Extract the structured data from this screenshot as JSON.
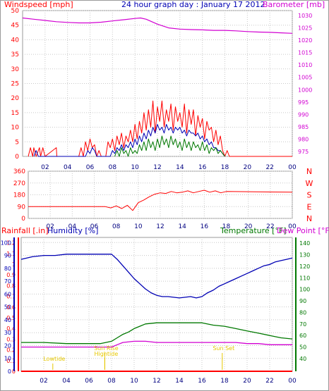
{
  "header": {
    "left_title": "Windspeed [mph]",
    "center_title": "24 hour graph day : January 17 2012",
    "right_title": "Barometer [mb]"
  },
  "colors": {
    "red": "#ff0000",
    "blue": "#0000b4",
    "green": "#007800",
    "magenta": "#d200d2",
    "yellow": "#e6c800",
    "grid": "#c8c8c8",
    "axis_frame": "#999999"
  },
  "legends": {
    "rainfall": "Rainfall [.in]",
    "humidity": "Humidity [%]",
    "temperature": "Temperature [°F]",
    "dewpoint": "Dew Point [°F]"
  },
  "annotations": {
    "lowtide": "Lowtide",
    "hightide": "Hightide",
    "sunrise": "Sun Rise",
    "sunset": "Sun Set"
  },
  "chart_data": [
    {
      "type": "line",
      "name": "wind",
      "title": "24 hour graph day : January 17 2012",
      "x_ticks": [
        "02",
        "04",
        "06",
        "08",
        "10",
        "12",
        "14",
        "16",
        "18",
        "20",
        "22",
        "00"
      ],
      "y_left_label": "Windspeed [mph]",
      "y_left_ticks": [
        0,
        5,
        10,
        15,
        20,
        25,
        30,
        35,
        40,
        45,
        50
      ],
      "ylim_left": [
        0,
        50
      ],
      "y_right_label": "Barometer [mb]",
      "y_right_ticks": [
        975,
        980,
        985,
        990,
        995,
        1000,
        1005,
        1010,
        1015,
        1020,
        1025,
        1030
      ],
      "ylim_right": [
        973,
        1032
      ],
      "grid": true,
      "series": [
        {
          "name": "Gust",
          "axis": "left",
          "color": "#ff0000",
          "x": [
            0.5,
            0.7,
            0.9,
            1.0,
            1.2,
            1.5,
            1.6,
            1.8,
            2.0,
            3.0,
            3.05,
            3.1,
            5.0,
            5.2,
            5.4,
            5.6,
            5.8,
            6.0,
            6.2,
            6.4,
            6.6,
            6.8,
            7.0,
            7.4,
            7.6,
            7.8,
            8.0,
            8.2,
            8.4,
            8.6,
            8.8,
            9.0,
            9.2,
            9.4,
            9.6,
            9.8,
            10.0,
            10.2,
            10.4,
            10.6,
            10.8,
            11.0,
            11.2,
            11.4,
            11.6,
            11.8,
            12.0,
            12.2,
            12.4,
            12.6,
            12.8,
            13.0,
            13.2,
            13.4,
            13.6,
            13.8,
            14.0,
            14.2,
            14.4,
            14.6,
            14.8,
            15.0,
            15.2,
            15.4,
            15.6,
            15.8,
            16.0,
            16.2,
            16.4,
            16.6,
            16.8,
            17.0,
            17.2,
            17.4,
            17.6,
            17.8,
            18.0,
            18.2,
            18.4,
            24.0
          ],
          "y": [
            0,
            3,
            0,
            3,
            0,
            3,
            0,
            3,
            0,
            3,
            0,
            0,
            0,
            3,
            0,
            5,
            2,
            6,
            3,
            4,
            0,
            2,
            0,
            0,
            5,
            3,
            6,
            2,
            7,
            4,
            8,
            3,
            7,
            5,
            9,
            5,
            11,
            6,
            12,
            8,
            15,
            9,
            16,
            10,
            19,
            8,
            17,
            12,
            19,
            10,
            16,
            12,
            18,
            9,
            17,
            12,
            15,
            10,
            18,
            8,
            16,
            11,
            16,
            7,
            14,
            10,
            13,
            6,
            12,
            9,
            10,
            5,
            9,
            4,
            7,
            2,
            0,
            2,
            0,
            0
          ]
        },
        {
          "name": "Average",
          "axis": "left",
          "color": "#0000b4",
          "x": [
            1.0,
            1.2,
            1.4,
            3.0,
            5.6,
            5.8,
            6.0,
            6.2,
            6.4,
            6.6,
            7.8,
            8.0,
            8.2,
            8.4,
            8.6,
            8.8,
            9.0,
            9.2,
            9.4,
            9.6,
            9.8,
            10.0,
            10.2,
            10.4,
            10.6,
            10.8,
            11.0,
            11.2,
            11.4,
            11.6,
            11.8,
            12.0,
            12.2,
            12.4,
            12.6,
            12.8,
            13.0,
            13.2,
            13.4,
            13.6,
            13.8,
            14.0,
            14.2,
            14.4,
            14.6,
            14.8,
            15.0,
            15.2,
            15.4,
            15.6,
            15.8,
            16.0,
            16.2,
            16.4,
            16.6,
            16.8,
            17.0,
            17.2,
            17.4,
            17.6,
            17.8,
            18.0
          ],
          "y": [
            0,
            2,
            0,
            0,
            0,
            2,
            1,
            3,
            2,
            0,
            0,
            2,
            1,
            3,
            2,
            4,
            2,
            4,
            3,
            5,
            3,
            6,
            4,
            7,
            5,
            8,
            6,
            9,
            7,
            10,
            8,
            11,
            9,
            10,
            8,
            11,
            9,
            10,
            8,
            10,
            9,
            10,
            8,
            9,
            7,
            9,
            8,
            8,
            7,
            8,
            6,
            7,
            5,
            6,
            4,
            5,
            3,
            3,
            2,
            2,
            1,
            0
          ]
        },
        {
          "name": "Wind",
          "axis": "left",
          "color": "#007800",
          "x": [
            8.2,
            8.4,
            8.6,
            8.8,
            9.0,
            9.2,
            9.4,
            9.6,
            9.8,
            10.0,
            10.2,
            10.4,
            10.6,
            10.8,
            11.0,
            11.2,
            11.4,
            11.6,
            11.8,
            12.0,
            12.2,
            12.4,
            12.6,
            12.8,
            13.0,
            13.2,
            13.4,
            13.6,
            13.8,
            14.0,
            14.2,
            14.4,
            14.6,
            14.8,
            15.0,
            15.2,
            15.4,
            15.6,
            15.8,
            16.0,
            16.2,
            16.4,
            16.6,
            16.8,
            17.0,
            17.2,
            17.4,
            17.6,
            17.8,
            18.0
          ],
          "y": [
            0,
            2,
            0,
            3,
            1,
            2,
            0,
            3,
            1,
            2,
            1,
            4,
            2,
            5,
            2,
            6,
            3,
            5,
            2,
            6,
            3,
            7,
            4,
            6,
            3,
            7,
            4,
            6,
            3,
            5,
            2,
            6,
            3,
            5,
            2,
            5,
            3,
            4,
            2,
            5,
            2,
            4,
            1,
            3,
            2,
            3,
            1,
            2,
            1,
            0
          ]
        },
        {
          "name": "Barometer",
          "axis": "right",
          "color": "#d200d2",
          "x": [
            0,
            1,
            2,
            3,
            4,
            5,
            6,
            7,
            8,
            9,
            10,
            10.5,
            11,
            12,
            13,
            14,
            15,
            16,
            17,
            18,
            19,
            20,
            21,
            22,
            23,
            24
          ],
          "y": [
            1029,
            1028.5,
            1028,
            1027.5,
            1027.2,
            1027,
            1027,
            1027.3,
            1027.8,
            1028.3,
            1028.8,
            1029,
            1028.5,
            1026.5,
            1025,
            1024.5,
            1024.3,
            1024.2,
            1024,
            1024,
            1023.8,
            1023.5,
            1023.3,
            1023.2,
            1023,
            1022.8
          ]
        }
      ]
    },
    {
      "type": "line",
      "name": "direction",
      "x_ticks": [
        "02",
        "04",
        "06",
        "08",
        "10",
        "12",
        "14",
        "16",
        "18",
        "20",
        "22",
        "00"
      ],
      "y_left_ticks": [
        0,
        90,
        180,
        270,
        360
      ],
      "ylim": [
        0,
        360
      ],
      "y_right_labels": [
        "N",
        "W",
        "S",
        "E",
        "N"
      ],
      "grid": true,
      "series": [
        {
          "name": "Direction",
          "color": "#ff0000",
          "x": [
            0,
            7.0,
            7.5,
            8.0,
            8.5,
            9.0,
            9.5,
            10.0,
            10.5,
            11.0,
            11.5,
            12.0,
            12.5,
            13.0,
            13.5,
            14.0,
            14.5,
            15.0,
            15.5,
            16.0,
            16.5,
            17.0,
            17.5,
            18.0,
            24.0
          ],
          "y": [
            90,
            90,
            80,
            95,
            75,
            100,
            60,
            120,
            140,
            165,
            185,
            195,
            190,
            205,
            195,
            200,
            210,
            195,
            205,
            215,
            200,
            210,
            195,
            205,
            200
          ]
        }
      ]
    },
    {
      "type": "line",
      "name": "humidity-temp",
      "x_ticks": [
        "02",
        "04",
        "06",
        "08",
        "10",
        "12",
        "14",
        "16",
        "18",
        "20",
        "22",
        "00"
      ],
      "y_rain_label": "Rainfall [.in]",
      "y_rain_ticks": [
        0,
        0.1,
        0.2,
        0.3,
        0.4,
        0.5,
        0.6,
        0.7,
        0.8,
        0.9,
        1,
        1.1,
        1.2
      ],
      "ylim_rain": [
        0,
        1.25
      ],
      "y_humidity_label": "Humidity [%]",
      "y_humidity_ticks": [
        0,
        10,
        20,
        30,
        40,
        50,
        60,
        70,
        80,
        90,
        100
      ],
      "ylim_humidity": [
        0,
        104
      ],
      "y_temp_label": "Temperature [°F]",
      "y_temp_ticks": [
        40,
        50,
        60,
        70,
        80,
        90,
        100,
        110,
        120,
        130,
        140
      ],
      "ylim_temp": [
        29,
        145
      ],
      "grid": true,
      "series": [
        {
          "name": "Humidity",
          "axis": "humidity",
          "color": "#0000b4",
          "x": [
            0,
            0.5,
            1,
            2,
            3,
            4,
            5,
            6,
            7,
            8,
            8.5,
            9,
            9.5,
            10,
            10.5,
            11,
            11.5,
            12,
            12.5,
            13,
            14,
            15,
            15.5,
            16,
            16.5,
            17,
            17.5,
            18,
            18.5,
            19,
            19.5,
            20,
            20.5,
            21,
            21.5,
            22,
            22.5,
            23,
            23.5,
            24
          ],
          "y": [
            87,
            88,
            89,
            90,
            90,
            91,
            91,
            91,
            91,
            91,
            87,
            82,
            77,
            72,
            68,
            64,
            61,
            59,
            58,
            58,
            57,
            58,
            57,
            58,
            61,
            63,
            66,
            68,
            70,
            72,
            74,
            76,
            78,
            80,
            82,
            83,
            85,
            86,
            87,
            88
          ]
        },
        {
          "name": "Temperature",
          "axis": "temp",
          "color": "#007800",
          "x": [
            0,
            2,
            4,
            6,
            7,
            7.5,
            8,
            8.5,
            9,
            9.5,
            10,
            10.5,
            11,
            12,
            13,
            14,
            15,
            16,
            17,
            18,
            19,
            20,
            21,
            22,
            23,
            24
          ],
          "y": [
            54,
            54,
            53,
            53,
            53,
            54,
            55,
            58,
            61,
            63,
            66,
            68,
            70,
            71,
            71,
            71,
            71,
            71,
            69,
            68,
            66,
            64,
            62,
            60,
            58,
            57
          ]
        },
        {
          "name": "Dew Point",
          "axis": "temp",
          "color": "#d200d2",
          "x": [
            0,
            2,
            4,
            6,
            7,
            8,
            8.5,
            9,
            10,
            11,
            12,
            13,
            14,
            15,
            16,
            17,
            18,
            19,
            20,
            21,
            22,
            23,
            24
          ],
          "y": [
            50,
            50,
            50,
            50,
            50,
            50,
            52,
            54,
            55,
            55,
            54,
            54,
            54,
            54,
            54,
            54,
            54,
            54,
            53,
            53,
            52,
            52,
            52
          ]
        },
        {
          "name": "Rainfall",
          "axis": "rain",
          "color": "#ff0000",
          "x": [
            0,
            24
          ],
          "y": [
            0,
            0
          ]
        }
      ],
      "events": [
        {
          "label": "Lowtide",
          "hour": 2.8
        },
        {
          "label": "Hightide",
          "hour": 7.4
        },
        {
          "label": "Sun Rise",
          "hour": 7.4
        },
        {
          "label": "Sun Set",
          "hour": 17.8
        }
      ]
    }
  ]
}
